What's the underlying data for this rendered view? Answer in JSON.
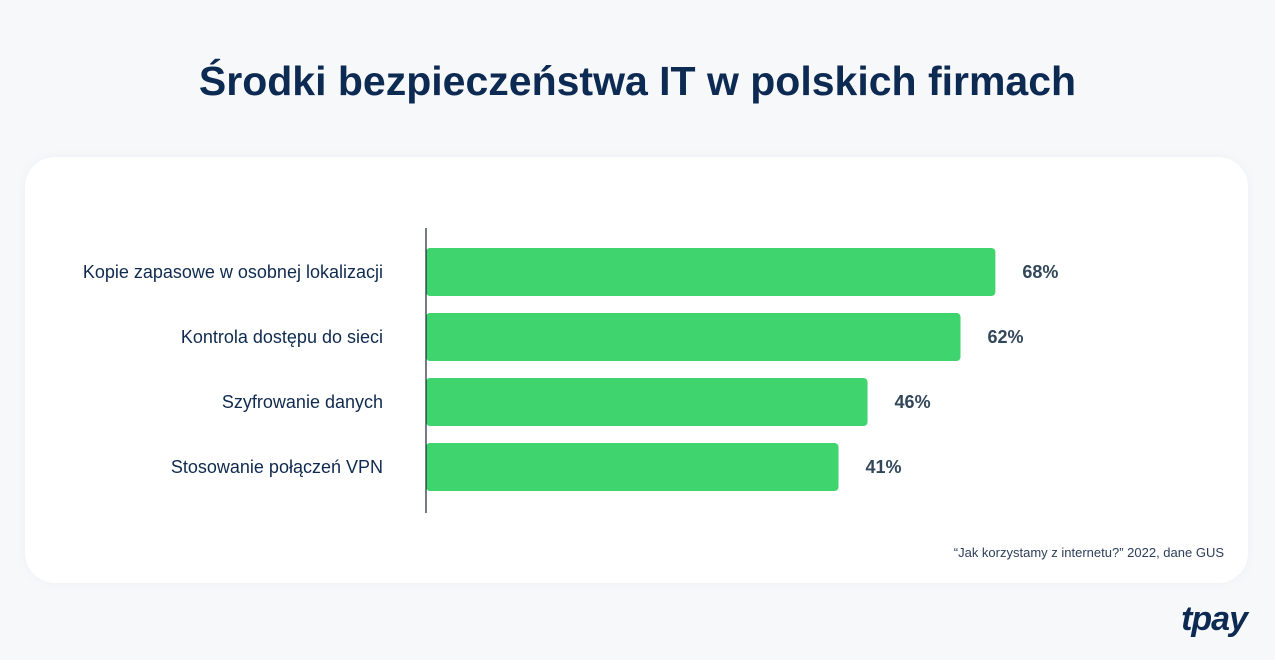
{
  "chart_data": {
    "type": "bar",
    "orientation": "horizontal",
    "title": "Środki bezpieczeństwa IT w polskich firmach",
    "categories": [
      "Kopie zapasowe w osobnej lokalizacji",
      "Kontrola dostępu do sieci",
      "Szyfrowanie danych",
      "Stosowanie połączeń VPN"
    ],
    "values": [
      68,
      62,
      46,
      41
    ],
    "value_labels": [
      "68%",
      "62%",
      "46%",
      "41%"
    ],
    "unit": "%",
    "grid": false,
    "colors": {
      "bar": "#3fd46e",
      "axis": "#1a2433",
      "label": "#33475b"
    }
  },
  "source": "“Jak korzystamy z internetu?” 2022, dane GUS",
  "logo": "tpay"
}
